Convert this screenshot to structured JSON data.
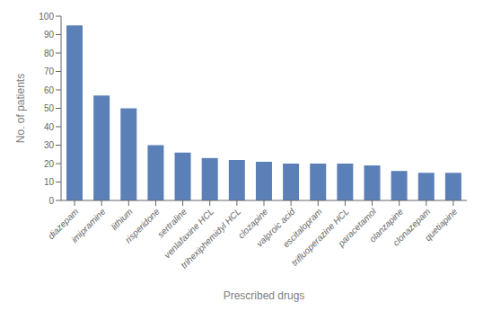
{
  "chart_data": {
    "type": "bar",
    "categories": [
      "diazepam",
      "imipramine",
      "lithium",
      "risperidone",
      "sertraline",
      "venlafaxine HCL",
      "trihexiphemidyl HCL",
      "clozapine",
      "valproic acid",
      "escitalopram",
      "trifluoperazine HCL",
      "paracetamol",
      "olanzapine",
      "clonazepam",
      "quetiapine"
    ],
    "values": [
      95,
      57,
      50,
      30,
      26,
      23,
      22,
      21,
      20,
      20,
      20,
      19,
      16,
      15,
      15
    ],
    "color": "#5b80b8",
    "xlabel": "Prescribed drugs",
    "ylabel": "No. of patients",
    "ylim": [
      0,
      100
    ],
    "yticks": [
      0,
      10,
      20,
      30,
      40,
      50,
      60,
      70,
      80,
      90,
      100
    ],
    "grid": false
  }
}
